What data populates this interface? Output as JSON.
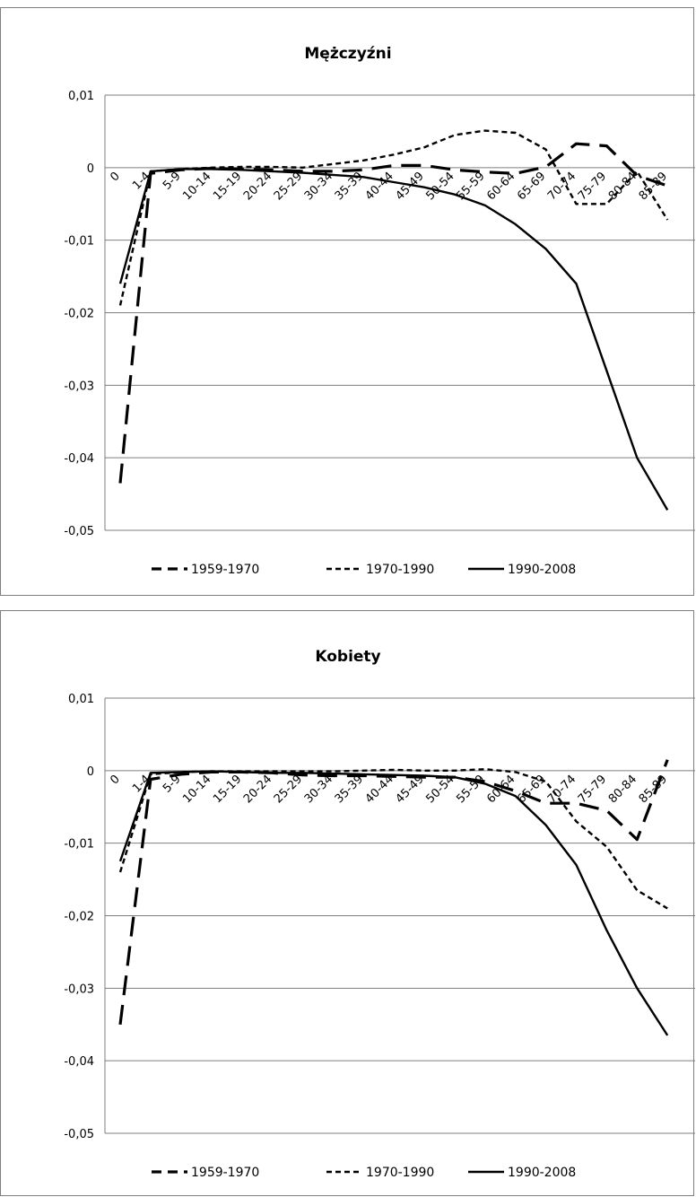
{
  "chart_data": [
    {
      "type": "line",
      "title": "Mężczyźni",
      "categories": [
        "0",
        "1-4",
        "5-9",
        "10-14",
        "15-19",
        "20-24",
        "25-29",
        "30-34",
        "35-39",
        "40-44",
        "45-49",
        "50-54",
        "55-59",
        "60-64",
        "65-69",
        "70-74",
        "75-79",
        "80-84",
        "85-89"
      ],
      "y_ticks": [
        "0,01",
        "0",
        "-0,01",
        "-0,02",
        "-0,03",
        "-0,04",
        "-0,05"
      ],
      "ylim": [
        -0.05,
        0.01
      ],
      "grid": true,
      "legend_position": "bottom",
      "series": [
        {
          "name": "1959-1970",
          "dash": "long",
          "values": [
            -0.0435,
            -0.0008,
            -0.0003,
            -0.0001,
            -0.0002,
            -0.0003,
            -0.0005,
            -0.0005,
            -0.0003,
            0.0003,
            0.0003,
            -0.0003,
            -0.0006,
            -0.0008,
            0.0001,
            0.0033,
            0.003,
            -0.0011,
            -0.0025
          ]
        },
        {
          "name": "1970-1990",
          "dash": "short",
          "values": [
            -0.019,
            -0.0005,
            -0.0002,
            0.0,
            0.0001,
            0.0001,
            0.0,
            0.0005,
            0.001,
            0.0018,
            0.0028,
            0.0045,
            0.0051,
            0.0048,
            0.0025,
            -0.005,
            -0.005,
            -0.0005,
            -0.0072
          ]
        },
        {
          "name": "1990-2008",
          "dash": "solid",
          "values": [
            -0.016,
            -0.0005,
            -0.0002,
            -0.0002,
            -0.0003,
            -0.0005,
            -0.0007,
            -0.001,
            -0.0013,
            -0.002,
            -0.0027,
            -0.0037,
            -0.0052,
            -0.0078,
            -0.0112,
            -0.016,
            -0.028,
            -0.04,
            -0.0472
          ]
        }
      ]
    },
    {
      "type": "line",
      "title": "Kobiety",
      "categories": [
        "0",
        "1-4",
        "5-9",
        "10-14",
        "15-19",
        "20-24",
        "25-29",
        "30-34",
        "35-39",
        "40-44",
        "45-49",
        "50-54",
        "55-59",
        "60-64",
        "65-69",
        "70-74",
        "75-79",
        "80-84",
        "85-89"
      ],
      "y_ticks": [
        "0,01",
        "0",
        "-0,01",
        "-0,02",
        "-0,03",
        "-0,04",
        "-0,05"
      ],
      "ylim": [
        -0.05,
        0.01
      ],
      "grid": true,
      "legend_position": "bottom",
      "series": [
        {
          "name": "1959-1970",
          "dash": "long",
          "values": [
            -0.035,
            -0.0012,
            -0.0005,
            -0.0002,
            -0.0002,
            -0.0003,
            -0.0006,
            -0.0007,
            -0.0007,
            -0.0008,
            -0.0009,
            -0.0009,
            -0.0015,
            -0.0028,
            -0.0045,
            -0.0045,
            -0.0055,
            -0.0095,
            0.0015
          ]
        },
        {
          "name": "1970-1990",
          "dash": "short",
          "values": [
            -0.014,
            -0.0005,
            -0.0002,
            -0.0001,
            -0.0001,
            -0.0001,
            -0.0001,
            -0.0001,
            0.0,
            0.0001,
            0.0,
            0.0,
            0.0002,
            -0.0002,
            -0.0015,
            -0.007,
            -0.0105,
            -0.0165,
            -0.019
          ]
        },
        {
          "name": "1990-2008",
          "dash": "solid",
          "values": [
            -0.0125,
            -0.0003,
            -0.0002,
            -0.0001,
            -0.0002,
            -0.0003,
            -0.0003,
            -0.0004,
            -0.0005,
            -0.0006,
            -0.0007,
            -0.0009,
            -0.0018,
            -0.0035,
            -0.0075,
            -0.013,
            -0.022,
            -0.03,
            -0.0365
          ]
        }
      ]
    }
  ]
}
